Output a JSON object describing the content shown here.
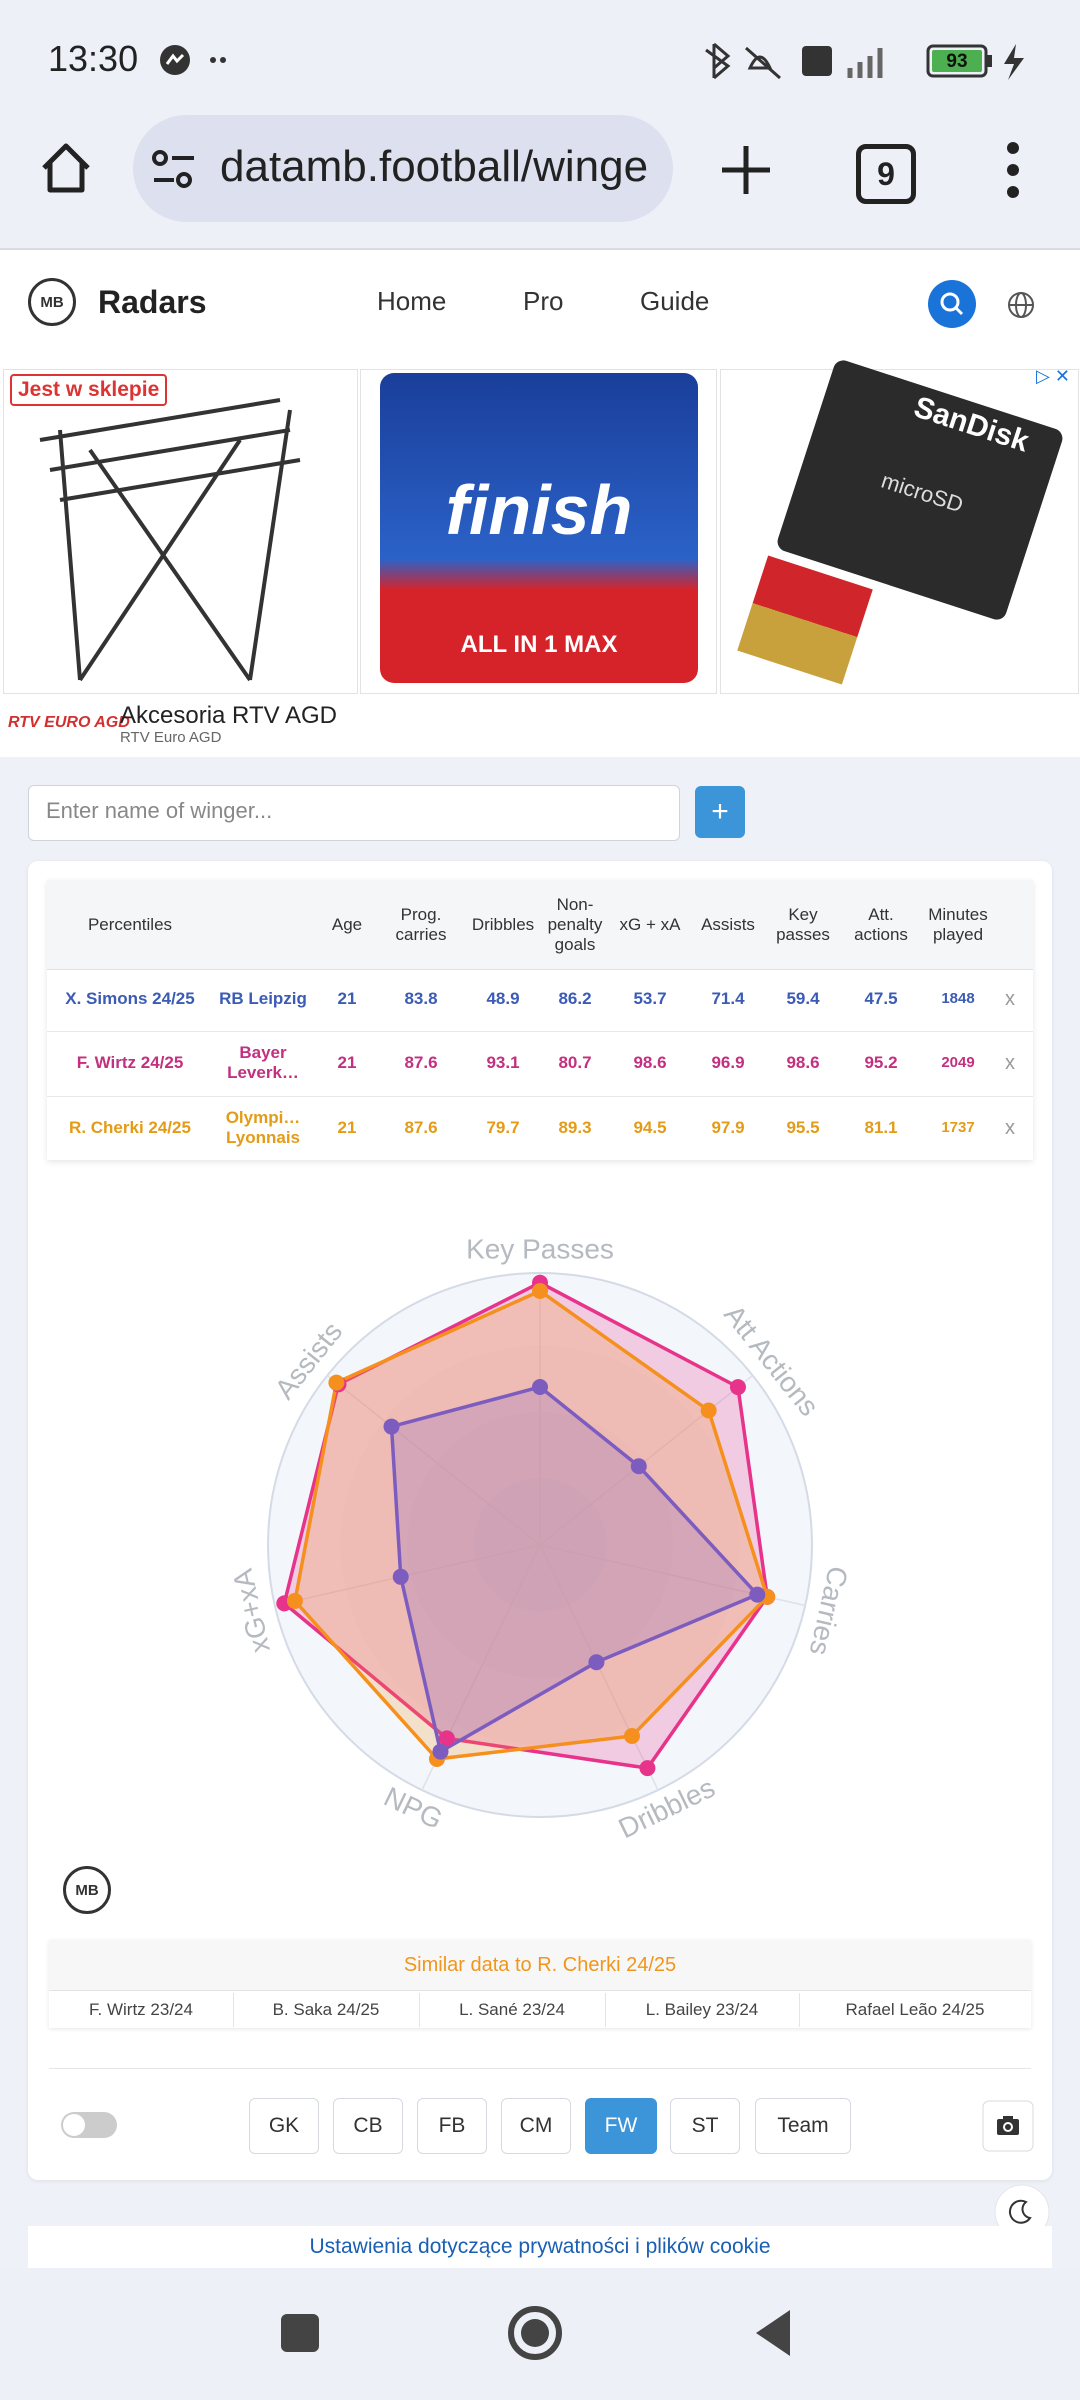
{
  "status_bar": {
    "time": "13:30",
    "battery": "93"
  },
  "browser": {
    "url": "datamb.football/winge",
    "tabs": "9"
  },
  "site": {
    "brand": "Radars",
    "nav": [
      "Home",
      "Pro",
      "Guide"
    ]
  },
  "logo": "MB",
  "ad": {
    "badge": "Jest w sklepie",
    "product_texts": [
      "finish",
      "ALL IN 1 MAX",
      "SanDisk",
      "microSD"
    ],
    "logo": "RTV EURO AGD",
    "title": "Akcesoria RTV AGD",
    "advertiser": "RTV Euro AGD"
  },
  "search": {
    "placeholder": "Enter name of winger...",
    "button": "+"
  },
  "table": {
    "header": [
      "Percentiles",
      "Age",
      "Prog. carries",
      "Dribbles",
      "Non-penalty goals",
      "xG + xA",
      "Assists",
      "Key passes",
      "Att. actions",
      "Minutes played"
    ],
    "rows": [
      {
        "player": "X. Simons 24/25",
        "team": "RB Leipzig",
        "values": [
          21,
          83.8,
          48.9,
          86.2,
          53.7,
          71.4,
          59.4,
          47.5,
          1848
        ],
        "remove": "x",
        "color": "#3b5bb5"
      },
      {
        "player": "F. Wirtz 24/25",
        "team": "Bayer Leverk…",
        "values": [
          21,
          87.6,
          93.1,
          80.7,
          98.6,
          96.9,
          98.6,
          95.2,
          2049
        ],
        "remove": "x",
        "color": "#c2307f"
      },
      {
        "player": "R. Cherki 24/25",
        "team": "Olympi… Lyonnais",
        "values": [
          21,
          87.6,
          79.7,
          89.3,
          94.5,
          97.9,
          95.5,
          81.1,
          1737
        ],
        "remove": "x",
        "color": "#e49b17"
      }
    ]
  },
  "chart_data": {
    "type": "radar",
    "categories": [
      "Key Passes",
      "Att Actions",
      "Carries",
      "Dribbles",
      "NPG",
      "xG+xA",
      "Assists"
    ],
    "rlim": [
      0,
      100
    ],
    "series": [
      {
        "color": "#e8338a",
        "values": [
          98.6,
          95.2,
          87.6,
          93.1,
          80.7,
          98.6,
          96.9
        ]
      },
      {
        "color": "#f5901e",
        "values": [
          95.5,
          81.1,
          87.6,
          79.7,
          89.3,
          94.5,
          97.9
        ]
      },
      {
        "color": "#7c5cbf",
        "values": [
          59.4,
          47.5,
          83.8,
          48.9,
          86.2,
          53.7,
          71.4
        ]
      }
    ]
  },
  "similar": {
    "title": "Similar data to R. Cherki 24/25",
    "items": [
      "F. Wirtz 23/24",
      "B. Saka 24/25",
      "L. Sané 23/24",
      "L. Bailey 23/24",
      "Rafael Leão 24/25"
    ]
  },
  "positions": {
    "buttons": [
      "GK",
      "CB",
      "FB",
      "CM",
      "FW",
      "ST",
      "Team"
    ],
    "active": "FW"
  },
  "cookie": {
    "text": "Ustawienia dotyczące prywatności i plików cookie"
  }
}
